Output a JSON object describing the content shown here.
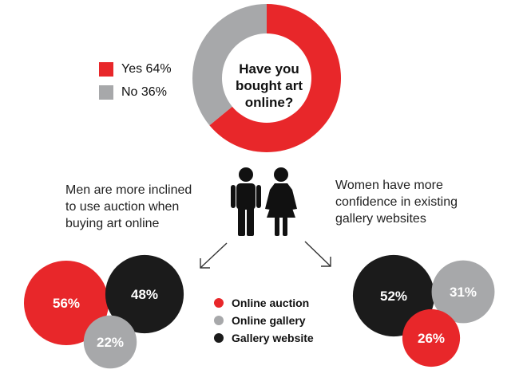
{
  "chart_data": [
    {
      "type": "pie",
      "title": "",
      "center_text": "Have you bought art online?",
      "slices": [
        {
          "label": "Yes 64%",
          "value": 64,
          "color": "#e8272a"
        },
        {
          "label": "No 36%",
          "value": 36,
          "color": "#a7a8aa"
        }
      ]
    },
    {
      "type": "bubble",
      "caption": "Men are more inclined to use auction when buying art online",
      "values": [
        {
          "category": "Online auction",
          "value": 56,
          "label": "56%",
          "color": "#e8272a"
        },
        {
          "category": "Gallery website",
          "value": 48,
          "label": "48%",
          "color": "#1b1b1b"
        },
        {
          "category": "Online gallery",
          "value": 22,
          "label": "22%",
          "color": "#a7a8aa"
        }
      ]
    },
    {
      "type": "bubble",
      "caption": "Women have more confidence in existing gallery websites",
      "values": [
        {
          "category": "Gallery website",
          "value": 52,
          "label": "52%",
          "color": "#1b1b1b"
        },
        {
          "category": "Online gallery",
          "value": 31,
          "label": "31%",
          "color": "#a7a8aa"
        },
        {
          "category": "Online auction",
          "value": 26,
          "label": "26%",
          "color": "#e8272a"
        }
      ]
    }
  ],
  "pie_legend": [
    {
      "label": "Yes 64%",
      "color": "#e8272a"
    },
    {
      "label": "No 36%",
      "color": "#a7a8aa"
    }
  ],
  "question_lines": [
    "Have you",
    "bought art",
    "online?"
  ],
  "captions": {
    "men_lines": [
      "Men are more inclined",
      "to use auction when",
      "buying art online"
    ],
    "women_lines": [
      "Women have more",
      "confidence in existing",
      "gallery websites"
    ]
  },
  "bubble_legend": [
    {
      "label": "Online auction",
      "color": "#e8272a"
    },
    {
      "label": "Online gallery",
      "color": "#a7a8aa"
    },
    {
      "label": "Gallery website",
      "color": "#1b1b1b"
    }
  ],
  "icons": [
    "man-icon",
    "woman-icon",
    "arrow-down-left-icon",
    "arrow-down-right-icon"
  ]
}
